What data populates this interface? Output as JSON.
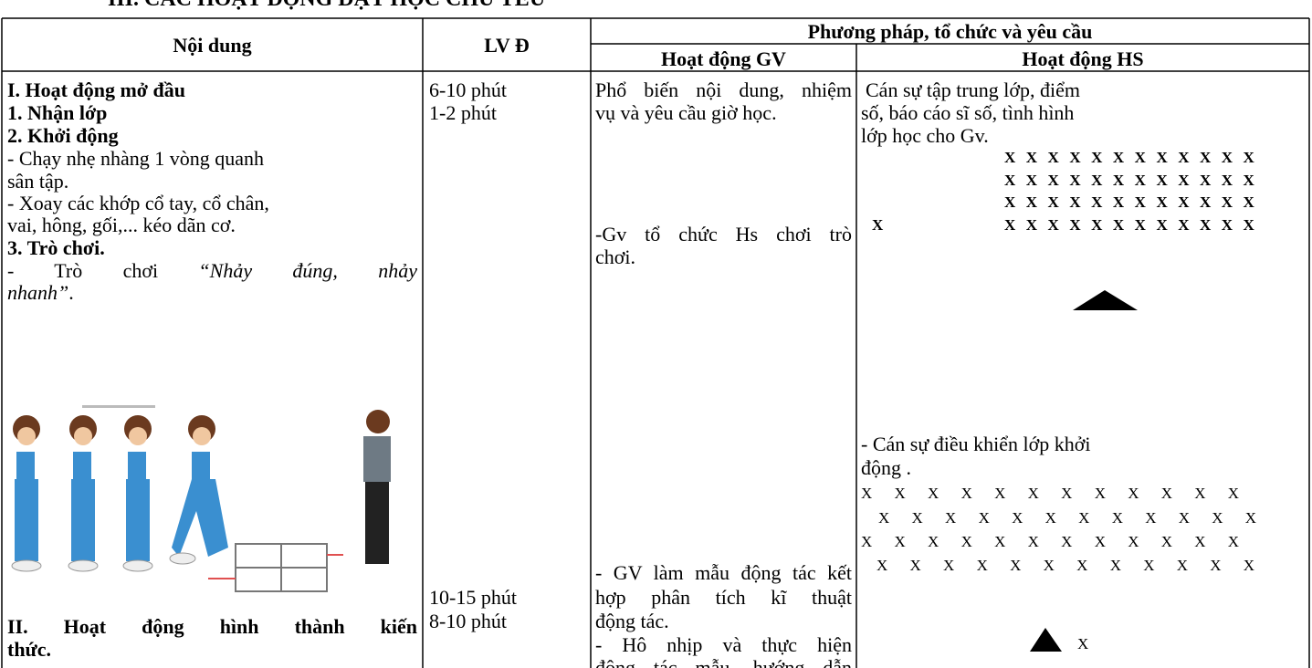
{
  "heading": "III. CÁC HOẠT ĐỘNG DẠY HỌC CHỦ YẾU",
  "table": {
    "header": {
      "content": "Nội dung",
      "time": "LV Đ",
      "method": "Phương pháp, tổ chức và yêu cầu",
      "teacher": "Hoạt động GV",
      "student": "Hoạt động HS"
    },
    "content": [
      "I. Hoạt động mở đầu",
      "1. Nhận lớp",
      "2. Khởi động",
      "- Chạy nhẹ nhàng 1 vòng quanh",
      "sân tập.",
      "- Xoay các khớp cổ tay, cổ chân,",
      "vai, hông, gối,... kéo dãn cơ.",
      "3. Trò chơi.",
      "- Trò chơi",
      "“Nhảy đúng, nhảy",
      "nhanh”",
      ".",
      "II. Hoạt động hình thành kiến",
      "thức."
    ],
    "time": [
      "6-10 phút",
      "1-2 phút",
      "10-15 phút",
      "8-10 phút"
    ],
    "teacher": [
      "Phổ biến nội dung, nhiệm",
      "vụ và yêu cầu giờ học.",
      "-Gv tổ chức Hs chơi trò",
      "chơi.",
      "- GV làm mẫu động tác kết",
      "hợp phân tích kĩ thuật",
      "động tác.",
      "- Hô nhịp và thực hiện",
      "động tác mẫu, hướng dẫn"
    ],
    "student": [
      "Cán sự tập trung lớp, điểm",
      "số, báo cáo sĩ số, tình hình",
      "lớp học cho Gv.",
      "XXXXXXXXXXXX",
      "XXXXXXXXXXXX",
      "XXXXXXXXXXXX",
      "X",
      "XXXXXXXXXXXX",
      "- Cán sự điều khiển lớp khởi",
      "động .",
      "X X X X X X X X X X X X",
      "X X X X X X X X X X X X",
      "X X X X X X X X X X X X",
      "X X X X X X X X X X X X",
      "X"
    ]
  }
}
